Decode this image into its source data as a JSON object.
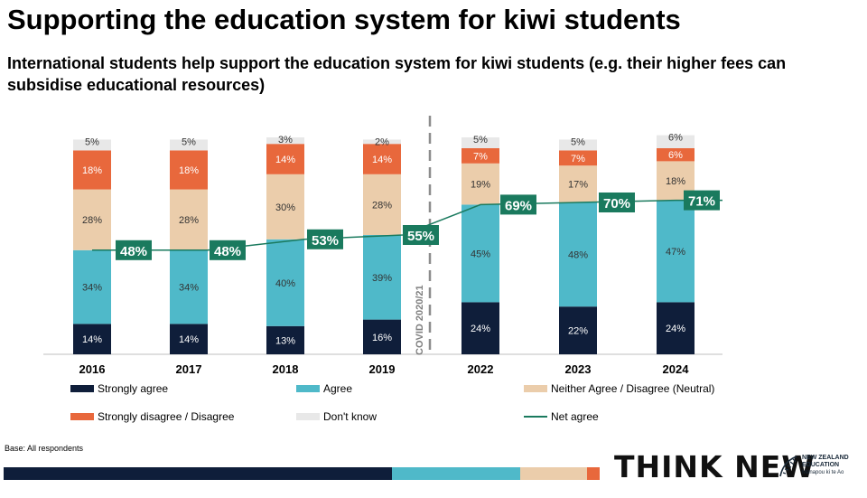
{
  "title": "Supporting the education system for kiwi students",
  "subtitle": "International students help support the education system for kiwi students (e.g. their higher fees can subsidise educational resources)",
  "base_note": "Base: All respondents",
  "covid_label": "COVID 2020/21",
  "logo": {
    "brand_text": "THINK NEW",
    "nz_line1": "NEW ZEALAND",
    "nz_line2": "EDUCATION",
    "nz_line3": "Manapou ki te Ao"
  },
  "colors": {
    "strongly_agree": "#0f1e3a",
    "agree": "#4fb9c9",
    "neutral": "#ebcdab",
    "disagree": "#e8683c",
    "dont_know": "#e8e8e8",
    "net_agree": "#1a7a5e"
  },
  "chart_data": {
    "type": "bar",
    "stacked": true,
    "categories": [
      "2016",
      "2017",
      "2018",
      "2019",
      "2022",
      "2023",
      "2024"
    ],
    "ylim": [
      0,
      100
    ],
    "series": [
      {
        "name": "Strongly agree",
        "key": "strongly_agree",
        "values": [
          14,
          14,
          13,
          16,
          24,
          22,
          24
        ]
      },
      {
        "name": "Agree",
        "key": "agree",
        "values": [
          34,
          34,
          40,
          39,
          45,
          48,
          47
        ]
      },
      {
        "name": "Neither Agree / Disagree (Neutral)",
        "key": "neutral",
        "values": [
          28,
          28,
          30,
          28,
          19,
          17,
          18
        ]
      },
      {
        "name": "Strongly disagree / Disagree",
        "key": "disagree",
        "values": [
          18,
          18,
          14,
          14,
          7,
          7,
          6
        ]
      },
      {
        "name": "Don't know",
        "key": "dont_know",
        "values": [
          5,
          5,
          3,
          2,
          5,
          5,
          6
        ]
      }
    ],
    "line_series": {
      "name": "Net agree",
      "key": "net_agree",
      "values": [
        48,
        48,
        53,
        55,
        69,
        70,
        71
      ]
    },
    "legend": [
      "Strongly agree",
      "Agree",
      "Neither Agree / Disagree (Neutral)",
      "Strongly disagree / Disagree",
      "Don't know",
      "Net agree"
    ],
    "legend_position": "bottom",
    "grid": false
  }
}
